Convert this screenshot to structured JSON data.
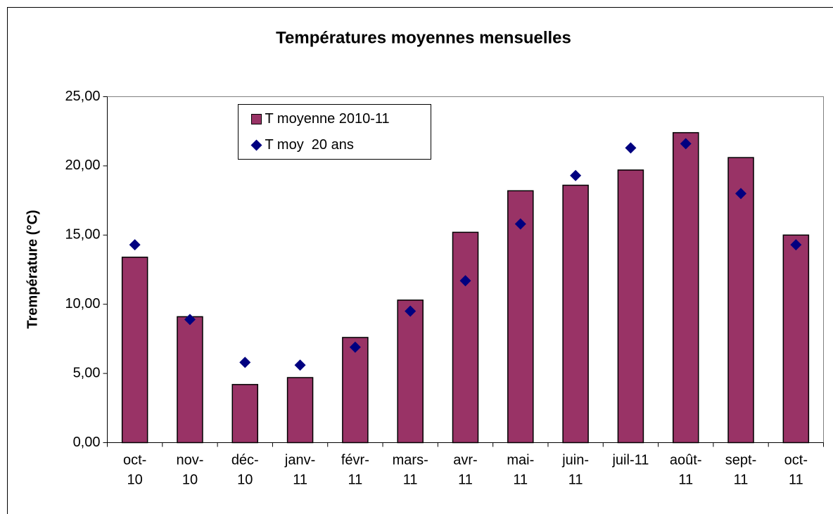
{
  "chart_data": {
    "type": "bar",
    "title": "Températures moyennes mensuelles",
    "y_label": "Trempérature (°C)",
    "categories": [
      "oct-\n10",
      "nov-\n10",
      "déc-\n10",
      "janv-\n11",
      "févr-\n11",
      "mars-\n11",
      "avr-\n11",
      "mai-\n11",
      "juin-\n11",
      "juil-11",
      "août-\n11",
      "sept-\n11",
      "oct-\n11"
    ],
    "series": [
      {
        "name": "T moyenne 2010-11",
        "type": "bar",
        "color": "#993366",
        "values": [
          13.4,
          9.1,
          4.2,
          4.7,
          7.6,
          10.3,
          15.2,
          18.2,
          18.6,
          19.7,
          22.4,
          20.6,
          15.0
        ]
      },
      {
        "name": "T moy  20 ans",
        "type": "diamond",
        "color": "#000080",
        "values": [
          14.3,
          8.9,
          5.8,
          5.6,
          6.9,
          9.5,
          11.7,
          15.8,
          19.3,
          21.3,
          21.6,
          18.0,
          14.3
        ]
      }
    ],
    "ylim": [
      0,
      25
    ],
    "yticks": [
      {
        "value": 0,
        "label": "0,00"
      },
      {
        "value": 5,
        "label": "5,00"
      },
      {
        "value": 10,
        "label": "10,00"
      },
      {
        "value": 15,
        "label": "15,00"
      },
      {
        "value": 20,
        "label": "20,00"
      },
      {
        "value": 25,
        "label": "25,00"
      }
    ],
    "legend": "top-left"
  }
}
